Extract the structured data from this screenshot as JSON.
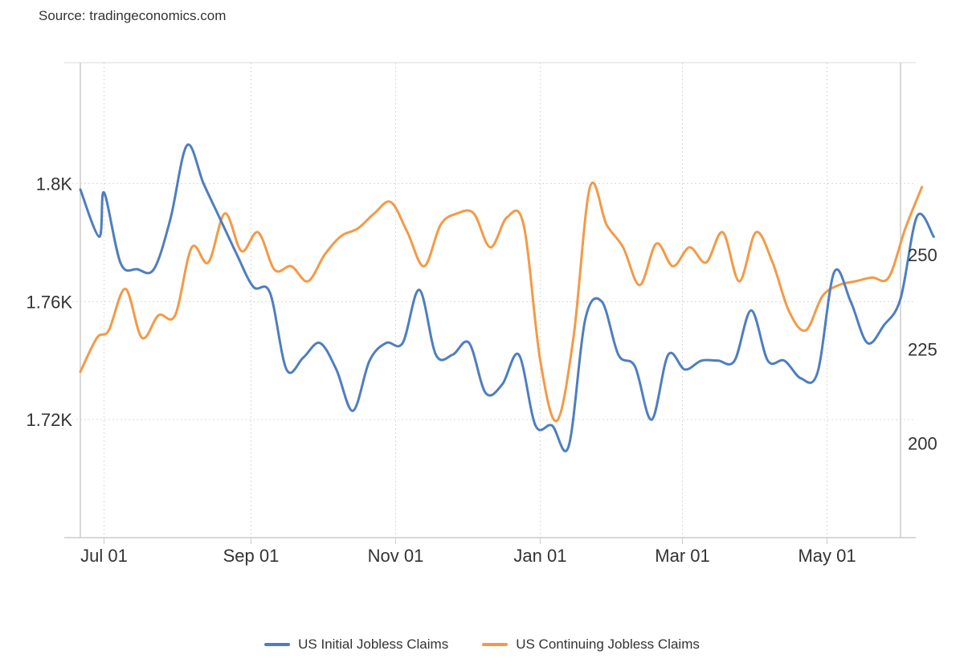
{
  "source": "Source: tradingeconomics.com",
  "colors": {
    "initial": "#4e7ebf",
    "continuing": "#f39a46",
    "grid": "#d9d9d9",
    "axis": "#cccccc"
  },
  "chart_data": {
    "type": "line",
    "title": "",
    "x_ticks": [
      "Jul 01",
      "Sep 01",
      "Nov 01",
      "Jan 01",
      "Mar 01",
      "May 01"
    ],
    "x_tick_dates": [
      "2023-07-01",
      "2023-09-01",
      "2023-11-01",
      "2024-01-01",
      "2024-03-01",
      "2024-05-01"
    ],
    "xlim": [
      "2023-06-21",
      "2024-06-01"
    ],
    "y_left": {
      "ticks": [
        "1.72K",
        "1.76K",
        "1.8K"
      ],
      "tick_values": [
        1720,
        1760,
        1800
      ],
      "ylim": [
        1680,
        1841
      ]
    },
    "y_right": {
      "ticks": [
        "200",
        "225",
        "250"
      ],
      "tick_values": [
        200,
        225,
        250
      ],
      "ylim": [
        175,
        301
      ]
    },
    "grid": true,
    "legend_position": "bottom-center",
    "series": [
      {
        "name": "US Initial Jobless Claims",
        "axis": "left",
        "points": [
          [
            "2023-06-21",
            1798
          ],
          [
            "2023-06-29",
            1782
          ],
          [
            "2023-07-01",
            1797
          ],
          [
            "2023-07-08",
            1773
          ],
          [
            "2023-07-15",
            1771
          ],
          [
            "2023-07-22",
            1771
          ],
          [
            "2023-07-29",
            1788
          ],
          [
            "2023-08-05",
            1813
          ],
          [
            "2023-08-12",
            1800
          ],
          [
            "2023-08-19",
            1788
          ],
          [
            "2023-08-26",
            1776
          ],
          [
            "2023-09-02",
            1765
          ],
          [
            "2023-09-09",
            1763
          ],
          [
            "2023-09-16",
            1737
          ],
          [
            "2023-09-23",
            1741
          ],
          [
            "2023-09-30",
            1746
          ],
          [
            "2023-10-07",
            1737
          ],
          [
            "2023-10-14",
            1723
          ],
          [
            "2023-10-21",
            1740
          ],
          [
            "2023-10-28",
            1746
          ],
          [
            "2023-11-04",
            1746
          ],
          [
            "2023-11-11",
            1764
          ],
          [
            "2023-11-18",
            1742
          ],
          [
            "2023-11-25",
            1742
          ],
          [
            "2023-12-02",
            1746
          ],
          [
            "2023-12-09",
            1729
          ],
          [
            "2023-12-16",
            1732
          ],
          [
            "2023-12-23",
            1742
          ],
          [
            "2023-12-30",
            1718
          ],
          [
            "2024-01-06",
            1718
          ],
          [
            "2024-01-13",
            1711
          ],
          [
            "2024-01-20",
            1754
          ],
          [
            "2024-01-27",
            1760
          ],
          [
            "2024-02-03",
            1742
          ],
          [
            "2024-02-10",
            1738
          ],
          [
            "2024-02-17",
            1720
          ],
          [
            "2024-02-24",
            1742
          ],
          [
            "2024-03-02",
            1737
          ],
          [
            "2024-03-09",
            1740
          ],
          [
            "2024-03-16",
            1740
          ],
          [
            "2024-03-23",
            1740
          ],
          [
            "2024-03-30",
            1757
          ],
          [
            "2024-04-06",
            1740
          ],
          [
            "2024-04-13",
            1740
          ],
          [
            "2024-04-20",
            1734
          ],
          [
            "2024-04-27",
            1736
          ],
          [
            "2024-05-04",
            1770
          ],
          [
            "2024-05-11",
            1760
          ],
          [
            "2024-05-18",
            1746
          ],
          [
            "2024-05-25",
            1752
          ],
          [
            "2024-06-01",
            1761
          ],
          [
            "2024-06-08",
            1789
          ],
          [
            "2024-06-15",
            1782
          ]
        ]
      },
      {
        "name": "US Continuing Jobless Claims",
        "axis": "right",
        "points": [
          [
            "2023-06-21",
            219
          ],
          [
            "2023-06-28",
            228
          ],
          [
            "2023-07-03",
            230
          ],
          [
            "2023-07-10",
            241
          ],
          [
            "2023-07-17",
            228
          ],
          [
            "2023-07-24",
            234
          ],
          [
            "2023-07-31",
            234
          ],
          [
            "2023-08-07",
            252
          ],
          [
            "2023-08-14",
            248
          ],
          [
            "2023-08-21",
            261
          ],
          [
            "2023-08-28",
            251
          ],
          [
            "2023-09-04",
            256
          ],
          [
            "2023-09-11",
            246
          ],
          [
            "2023-09-18",
            247
          ],
          [
            "2023-09-25",
            243
          ],
          [
            "2023-10-02",
            250
          ],
          [
            "2023-10-09",
            255
          ],
          [
            "2023-10-16",
            257
          ],
          [
            "2023-10-23",
            261
          ],
          [
            "2023-10-30",
            264
          ],
          [
            "2023-11-06",
            256
          ],
          [
            "2023-11-13",
            247
          ],
          [
            "2023-11-20",
            258
          ],
          [
            "2023-11-27",
            261
          ],
          [
            "2023-12-04",
            261
          ],
          [
            "2023-12-11",
            252
          ],
          [
            "2023-12-18",
            260
          ],
          [
            "2023-12-25",
            258
          ],
          [
            "2024-01-01",
            222
          ],
          [
            "2024-01-08",
            206
          ],
          [
            "2024-01-15",
            228
          ],
          [
            "2024-01-22",
            268
          ],
          [
            "2024-01-29",
            258
          ],
          [
            "2024-02-05",
            252
          ],
          [
            "2024-02-12",
            242
          ],
          [
            "2024-02-19",
            253
          ],
          [
            "2024-02-26",
            247
          ],
          [
            "2024-03-04",
            252
          ],
          [
            "2024-03-11",
            248
          ],
          [
            "2024-03-18",
            256
          ],
          [
            "2024-03-25",
            243
          ],
          [
            "2024-04-01",
            256
          ],
          [
            "2024-04-08",
            248
          ],
          [
            "2024-04-15",
            235
          ],
          [
            "2024-04-22",
            230
          ],
          [
            "2024-04-29",
            239
          ],
          [
            "2024-05-06",
            242
          ],
          [
            "2024-05-13",
            243
          ],
          [
            "2024-05-20",
            244
          ],
          [
            "2024-05-27",
            244
          ],
          [
            "2024-06-03",
            257
          ],
          [
            "2024-06-10",
            268
          ]
        ]
      }
    ]
  }
}
